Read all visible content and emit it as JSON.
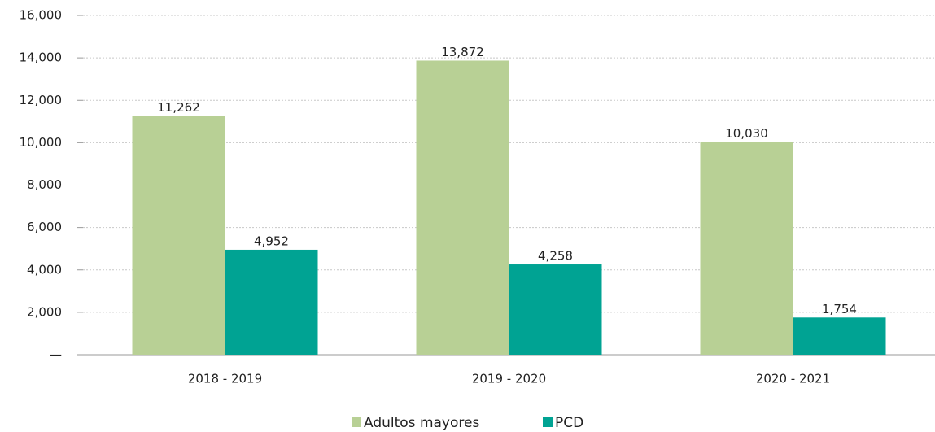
{
  "chart_data": {
    "type": "bar",
    "categories": [
      "2018 - 2019",
      "2019 - 2020",
      "2020 - 2021"
    ],
    "series": [
      {
        "name": "Adultos mayores",
        "color": "#b8d095",
        "values": [
          11262,
          13872,
          10030
        ],
        "value_labels": [
          "11,262",
          "13,872",
          "10,030"
        ]
      },
      {
        "name": "PCD",
        "color": "#00a393",
        "values": [
          4952,
          4258,
          1754
        ],
        "value_labels": [
          "4,952",
          "4,258",
          "1,754"
        ]
      }
    ],
    "ylim": [
      0,
      16000
    ],
    "yticks": [
      {
        "value": 0,
        "label": "—"
      },
      {
        "value": 2000,
        "label": "2,000"
      },
      {
        "value": 4000,
        "label": "4,000"
      },
      {
        "value": 6000,
        "label": "6,000"
      },
      {
        "value": 8000,
        "label": "8,000"
      },
      {
        "value": 10000,
        "label": "10,000"
      },
      {
        "value": 12000,
        "label": "12,000"
      },
      {
        "value": 14000,
        "label": "14,000"
      },
      {
        "value": 16000,
        "label": "16,000"
      }
    ],
    "grid": true,
    "legend": "bottom"
  }
}
